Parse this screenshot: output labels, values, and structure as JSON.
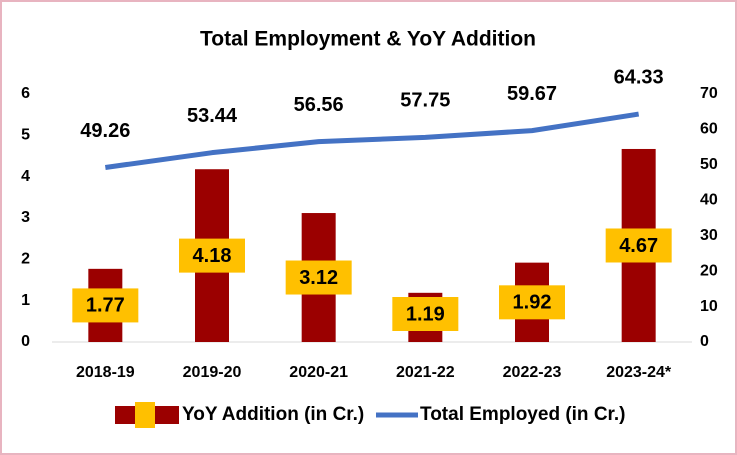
{
  "chart_data": {
    "type": "bar_line",
    "title": "Total Employment & YoY Addition",
    "categories": [
      "2018-19",
      "2019-20",
      "2020-21",
      "2021-22",
      "2022-23",
      "2023-24*"
    ],
    "series": [
      {
        "name": "YoY Addition (in Cr.)",
        "type": "bar",
        "color": "#9b0000",
        "label_color": "#ffc000",
        "values": [
          1.77,
          4.18,
          3.12,
          1.19,
          1.92,
          4.67
        ]
      },
      {
        "name": "Total Employed (in Cr.)",
        "type": "line",
        "axis": "y2",
        "color": "#4472c4",
        "values": [
          49.26,
          53.44,
          56.56,
          57.75,
          59.67,
          64.33
        ]
      }
    ],
    "ylim": [
      0,
      6
    ],
    "yticks": [
      0,
      1,
      2,
      3,
      4,
      5,
      6
    ],
    "y2lim": [
      0,
      70
    ],
    "y2ticks": [
      0,
      10,
      20,
      30,
      40,
      50,
      60,
      70
    ],
    "grid": false,
    "legend": "bottom"
  }
}
